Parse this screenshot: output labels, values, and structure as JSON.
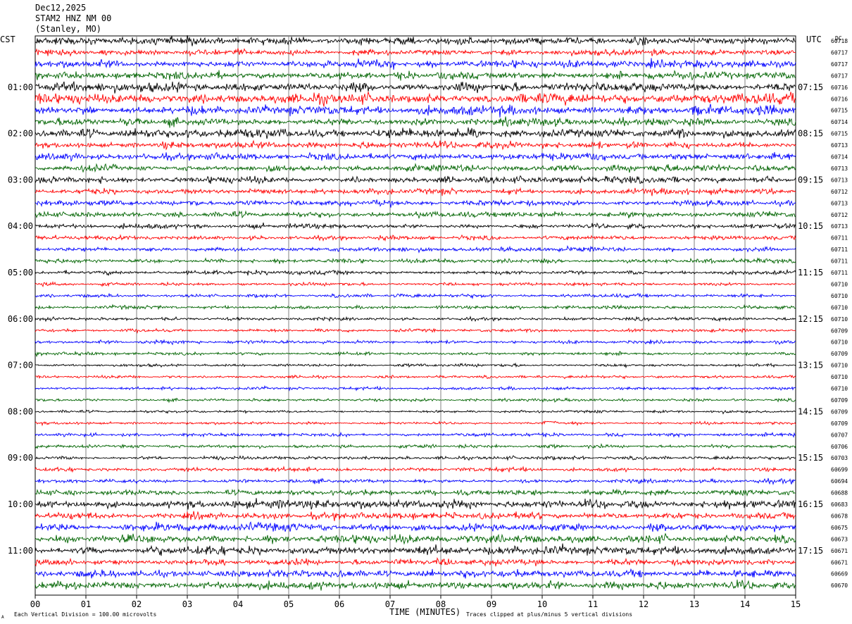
{
  "header": {
    "date": "Dec12,2025",
    "station": "STAM2 HNZ NM 00",
    "location": "(Stanley, MO)"
  },
  "labels": {
    "left_tz": "CST",
    "right_tz": "UTC",
    "dc_header": "DC",
    "xlabel": "TIME (MINUTES)",
    "scale_note": "Each Vertical Division =  100.00 microvolts",
    "clip_note": "Traces clipped at plus/minus 5 vertical divisions",
    "corner_mark": "A"
  },
  "chart_data": {
    "type": "line",
    "description_type": "helicorder",
    "xlim": [
      0,
      15
    ],
    "x_ticks": [
      "00",
      "01",
      "02",
      "03",
      "04",
      "05",
      "06",
      "07",
      "08",
      "09",
      "10",
      "11",
      "12",
      "13",
      "14",
      "15"
    ],
    "trace_colors": [
      "#000000",
      "#ff0000",
      "#0000ff",
      "#006400"
    ],
    "left_time_labels": [
      "01:00",
      "02:00",
      "03:00",
      "04:00",
      "05:00",
      "06:00",
      "07:00",
      "08:00",
      "09:00",
      "10:00",
      "11:00"
    ],
    "right_time_labels": [
      "07:15",
      "08:15",
      "09:15",
      "10:15",
      "11:15",
      "12:15",
      "13:15",
      "14:15",
      "15:15",
      "16:15",
      "17:15"
    ],
    "dc_offsets": [
      "60718",
      "60717",
      "60717",
      "60717",
      "60716",
      "60716",
      "60715",
      "60714",
      "60715",
      "60713",
      "60714",
      "60713",
      "60713",
      "60712",
      "60713",
      "60712",
      "60713",
      "60711",
      "60711",
      "60711",
      "60711",
      "60710",
      "60710",
      "60710",
      "60710",
      "60709",
      "60710",
      "60709",
      "60710",
      "60710",
      "60710",
      "60709",
      "60709",
      "60709",
      "60707",
      "60706",
      "60703",
      "60699",
      "60694",
      "60688",
      "60683",
      "60678",
      "60675",
      "60673",
      "60671",
      "60671",
      "60669",
      "60670"
    ],
    "trace_noise_level": [
      3.0,
      2.5,
      2.8,
      3.0,
      3.5,
      4.0,
      3.5,
      3.0,
      3.5,
      2.5,
      2.8,
      2.5,
      2.5,
      2.2,
      2.2,
      2.2,
      1.8,
      1.6,
      1.8,
      1.6,
      1.6,
      1.3,
      1.3,
      1.3,
      1.3,
      1.2,
      1.2,
      1.2,
      1.1,
      1.1,
      1.1,
      1.1,
      1.0,
      1.0,
      1.3,
      1.3,
      1.3,
      1.5,
      1.5,
      2.0,
      3.0,
      2.5,
      3.0,
      3.0,
      3.2,
      2.5,
      2.8,
      3.0
    ],
    "events": [
      {
        "trace": 33,
        "minute": 10.0,
        "peak_divisions": 1.0
      }
    ],
    "traces_clipped_divisions": 5,
    "vertical_division_microvolts": 100.0
  }
}
